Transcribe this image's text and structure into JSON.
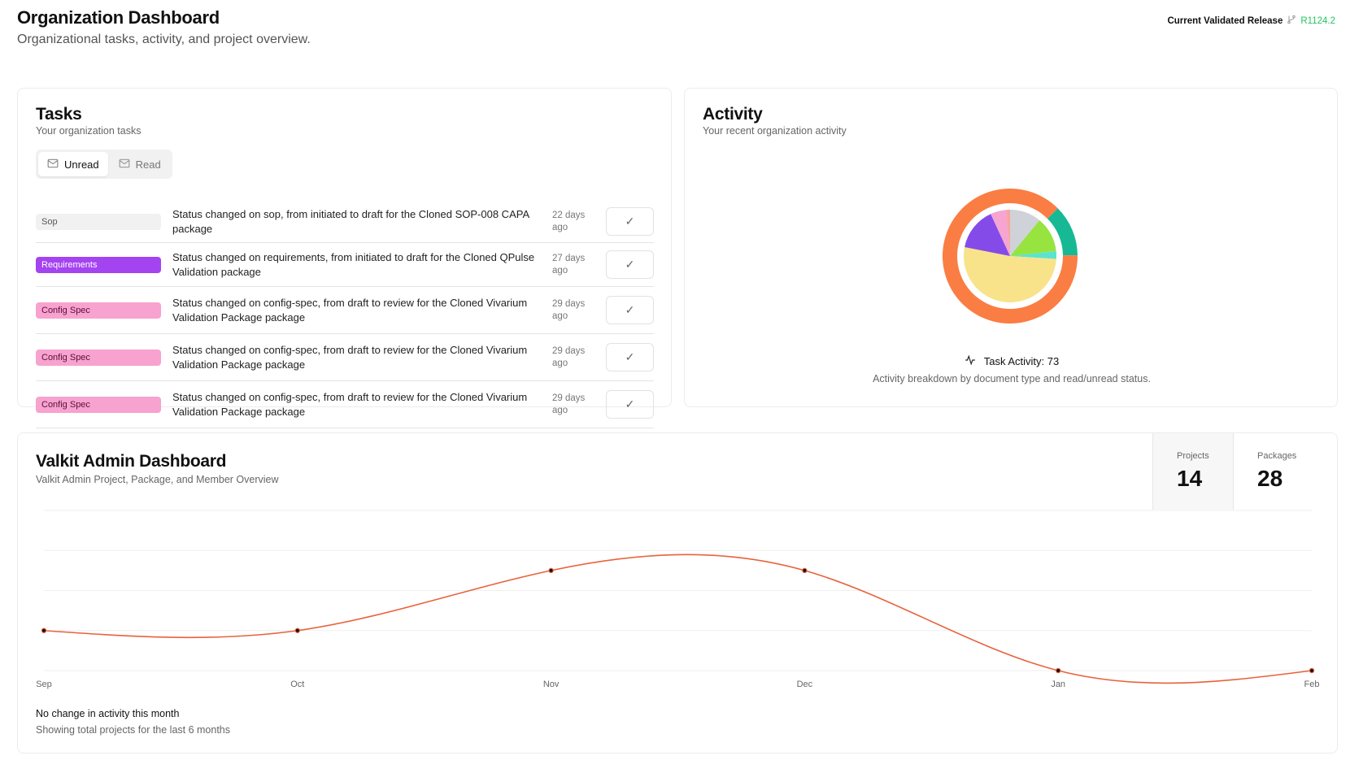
{
  "header": {
    "title": "Organization Dashboard",
    "subtitle": "Organizational tasks, activity, and project overview.",
    "release_label": "Current Validated Release",
    "release_icon": "git-branch-icon",
    "release_version": "R1124.2",
    "release_color": "#22c55e"
  },
  "tasks": {
    "title": "Tasks",
    "subtitle": "Your organization tasks",
    "tabs": [
      {
        "label": "Unread",
        "icon": "mail-icon",
        "active": true
      },
      {
        "label": "Read",
        "icon": "mail-check-icon",
        "active": false
      }
    ],
    "items": [
      {
        "type": "Sop",
        "bg": "#f1f1f1",
        "fg": "#555",
        "message": "Status changed on sop, from initiated to draft for the Cloned SOP-008 CAPA package",
        "date": "22 days ago"
      },
      {
        "type": "Requirements",
        "bg": "#a443f0",
        "fg": "#ffffff",
        "message": "Status changed on requirements, from initiated to draft for the Cloned QPulse Validation package",
        "date": "27 days ago"
      },
      {
        "type": "Config Spec",
        "bg": "#f7a2cf",
        "fg": "#5a1038",
        "message": "Status changed on config-spec, from draft to review for the Cloned Vivarium Validation Package package",
        "date": "29 days ago"
      },
      {
        "type": "Config Spec",
        "bg": "#f7a2cf",
        "fg": "#5a1038",
        "message": "Status changed on config-spec, from draft to review for the Cloned Vivarium Validation Package package",
        "date": "29 days ago"
      },
      {
        "type": "Config Spec",
        "bg": "#f7a2cf",
        "fg": "#5a1038",
        "message": "Status changed on config-spec, from draft to review for the Cloned Vivarium Validation Package package",
        "date": "29 days ago"
      }
    ]
  },
  "activity": {
    "title": "Activity",
    "subtitle": "Your recent organization activity",
    "total_label": "Task Activity: 73",
    "icon": "activity-icon",
    "caption": "Activity breakdown by document type and read/unread status."
  },
  "chart_data": [
    {
      "type": "pie",
      "inner": {
        "values": [
          8,
          9,
          2,
          38,
          11,
          4,
          1
        ],
        "colors": [
          "#cfd2d8",
          "#97e33f",
          "#5ae4cf",
          "#f9e38a",
          "#854be9",
          "#f6a4d1",
          "#f9a49e"
        ]
      },
      "outer": {
        "values": [
          9,
          64
        ],
        "colors": [
          "#17b994",
          "#fa7d43"
        ]
      }
    },
    {
      "type": "line",
      "categories": [
        "Sep",
        "Oct",
        "Nov",
        "Dec",
        "Jan",
        "Feb"
      ],
      "values": [
        1,
        1,
        2.5,
        2.5,
        0,
        0
      ],
      "ylim": [
        0,
        4
      ],
      "grid": true,
      "color": "#e8623c"
    }
  ],
  "admin": {
    "title": "Valkit Admin Dashboard",
    "subtitle": "Valkit Admin Project, Package, and Member Overview",
    "stats": [
      {
        "label": "Projects",
        "value": "14"
      },
      {
        "label": "Packages",
        "value": "28"
      }
    ],
    "footer_title": "No change in activity this month",
    "footer_sub": "Showing total projects for the last 6 months"
  }
}
